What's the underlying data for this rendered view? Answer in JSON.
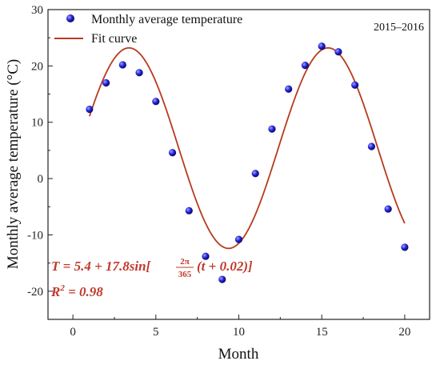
{
  "chart_data": {
    "type": "scatter",
    "xlabel": "Month",
    "ylabel": "Monthly average temperature (°C)",
    "xlim": [
      -1.5,
      21.5
    ],
    "ylim": [
      -25,
      30
    ],
    "xticks": [
      0,
      5,
      10,
      15,
      20
    ],
    "yticks": [
      -20,
      -10,
      0,
      10,
      20,
      30
    ],
    "period_label": "2015–2016",
    "grid": false,
    "legend_position": "top-left",
    "series": [
      {
        "name": "Monthly average temperature",
        "kind": "scatter",
        "color": "#2020c8",
        "x": [
          1,
          2,
          3,
          4,
          5,
          6,
          7,
          8,
          9,
          10,
          11,
          12,
          13,
          14,
          15,
          16,
          17,
          18,
          19,
          20
        ],
        "y": [
          12.3,
          17.0,
          20.2,
          18.8,
          13.7,
          4.6,
          -5.7,
          -13.8,
          -17.9,
          -10.8,
          0.9,
          8.8,
          15.9,
          20.1,
          23.5,
          22.5,
          16.6,
          5.7,
          -5.4,
          -12.2
        ]
      },
      {
        "name": "Fit curve",
        "kind": "line",
        "color": "#b83a1e",
        "x_range": [
          1,
          20
        ],
        "model": {
          "offset": 5.4,
          "amplitude": 17.8,
          "period_days": 365,
          "phase": 0.02
        }
      }
    ],
    "annotations": {
      "equation_lhs": "T = 5.4 + 17.8sin[",
      "equation_frac_num": "2π",
      "equation_frac_den": "365",
      "equation_rhs": "(t + 0.02)]",
      "r2_label": "R",
      "r2_sup": "2",
      "r2_value": " = 0.98",
      "annotation_color": "#c0392b"
    }
  }
}
